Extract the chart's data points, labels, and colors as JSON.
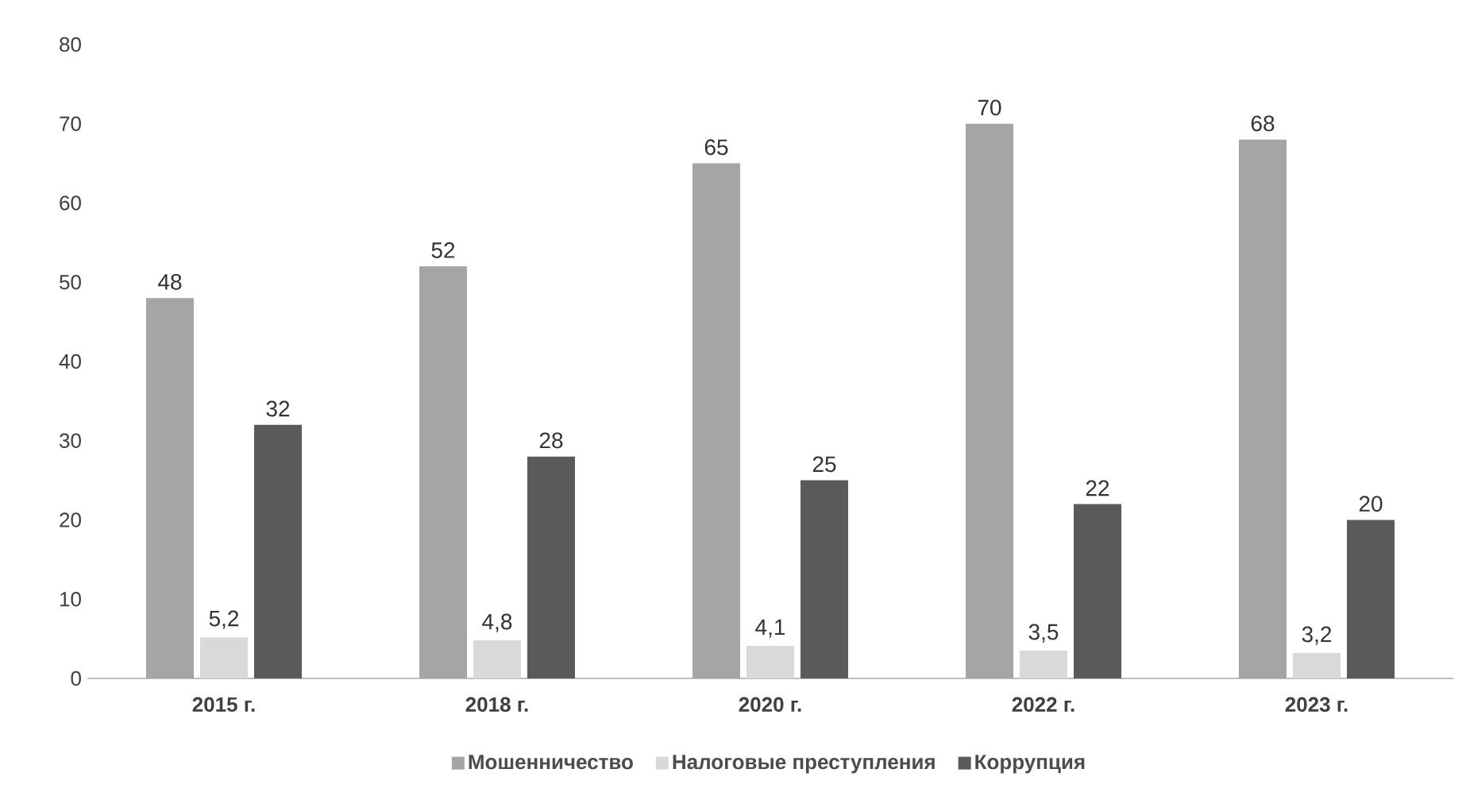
{
  "chart_data": {
    "type": "bar",
    "categories": [
      "2015 г.",
      "2018 г.",
      "2020 г.",
      "2022 г.",
      "2023 г."
    ],
    "series": [
      {
        "name": "Мошенничество",
        "color": "#a5a5a6",
        "values": [
          48,
          52,
          65,
          70,
          68
        ],
        "value_labels": [
          "48",
          "52",
          "65",
          "70",
          "68"
        ]
      },
      {
        "name": "Налоговые преступления",
        "color": "#d9d9d9",
        "values": [
          5.2,
          4.8,
          4.1,
          3.5,
          3.2
        ],
        "value_labels": [
          "5,2",
          "4,8",
          "4,1",
          "3,5",
          "3,2"
        ]
      },
      {
        "name": "Коррупция",
        "color": "#5a5a5c",
        "values": [
          32,
          28,
          25,
          22,
          20
        ],
        "value_labels": [
          "32",
          "28",
          "25",
          "22",
          "20"
        ]
      }
    ],
    "ylim": [
      0,
      80
    ],
    "yticks": [
      0,
      10,
      20,
      30,
      40,
      50,
      60,
      70,
      80
    ],
    "grid": false,
    "legend": "bottom"
  }
}
